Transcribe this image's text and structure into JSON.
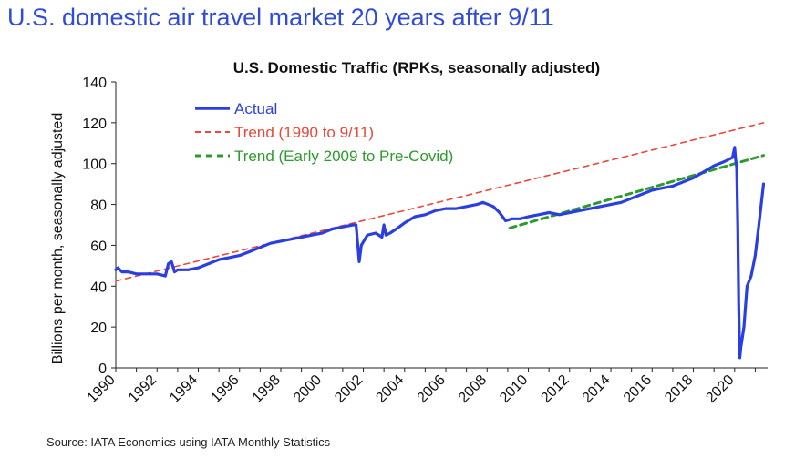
{
  "slide": {
    "title": "U.S. domestic air travel market 20 years after 9/11",
    "source": "Source: IATA Economics using IATA Monthly Statistics"
  },
  "chart_data": {
    "type": "line",
    "title": "U.S. Domestic Traffic (RPKs, seasonally adjusted)",
    "xlabel": "",
    "ylabel": "Billions per month, seasonally adjusted",
    "xlim": [
      1990,
      2021.6
    ],
    "ylim": [
      0,
      140
    ],
    "yticks": [
      "0",
      "20",
      "40",
      "60",
      "80",
      "100",
      "120",
      "140"
    ],
    "xticks": [
      "1990",
      "1992",
      "1994",
      "1996",
      "1998",
      "2000",
      "2002",
      "2004",
      "2006",
      "2008",
      "2010",
      "2012",
      "2014",
      "2016",
      "2018",
      "2020"
    ],
    "grid": false,
    "legend_position": "top-left",
    "colors": {
      "actual": "#2b3fe0",
      "trend1": "#e8473a",
      "trend2": "#2e9a2e"
    },
    "series": [
      {
        "name": "Actual",
        "style": "solid",
        "x": [
          1990.0,
          1990.1,
          1990.3,
          1990.6,
          1991.0,
          1991.5,
          1992.0,
          1992.4,
          1992.55,
          1992.7,
          1992.85,
          1993.0,
          1993.5,
          1994.0,
          1994.5,
          1995.0,
          1995.5,
          1996.0,
          1996.5,
          1997.0,
          1997.5,
          1998.0,
          1998.5,
          1999.0,
          1999.5,
          2000.0,
          2000.5,
          2001.0,
          2001.5,
          2001.65,
          2001.7,
          2001.8,
          2001.9,
          2002.2,
          2002.6,
          2002.9,
          2003.0,
          2003.1,
          2003.3,
          2003.6,
          2004.0,
          2004.5,
          2005.0,
          2005.5,
          2006.0,
          2006.5,
          2007.0,
          2007.5,
          2007.8,
          2008.3,
          2008.6,
          2008.9,
          2009.2,
          2009.6,
          2010.0,
          2010.5,
          2011.0,
          2011.5,
          2012.0,
          2012.5,
          2013.0,
          2013.5,
          2014.0,
          2014.5,
          2015.0,
          2015.5,
          2016.0,
          2016.5,
          2017.0,
          2017.5,
          2018.0,
          2018.5,
          2019.0,
          2019.5,
          2019.9,
          2020.0,
          2020.05,
          2020.1,
          2020.15,
          2020.2,
          2020.25,
          2020.3,
          2020.45,
          2020.6,
          2020.8,
          2021.0,
          2021.2,
          2021.4
        ],
        "y": [
          48,
          49,
          47,
          47,
          46,
          46,
          46,
          45,
          51,
          52,
          47,
          48,
          48,
          49,
          51,
          53,
          54,
          55,
          57,
          59,
          61,
          62,
          63,
          64,
          65,
          66,
          68,
          69,
          70,
          70,
          64,
          52,
          60,
          65,
          66,
          64,
          70,
          65,
          66,
          68,
          71,
          74,
          75,
          77,
          78,
          78,
          79,
          80,
          81,
          79,
          76,
          72,
          73,
          73,
          74,
          75,
          76,
          75,
          76,
          77,
          78,
          79,
          80,
          81,
          83,
          85,
          87,
          88,
          89,
          91,
          93,
          96,
          99,
          101,
          103,
          108,
          102,
          98,
          70,
          30,
          5,
          10,
          20,
          40,
          45,
          55,
          72,
          90
        ]
      },
      {
        "name": "Trend (1990 to 9/11)",
        "style": "dashed",
        "x": [
          1990.0,
          2021.4
        ],
        "y": [
          42.5,
          120.0
        ]
      },
      {
        "name": "Trend (Early 2009 to Pre-Covid)",
        "style": "dashed",
        "x": [
          2009.1,
          2021.4
        ],
        "y": [
          68.5,
          104.0
        ]
      }
    ]
  }
}
